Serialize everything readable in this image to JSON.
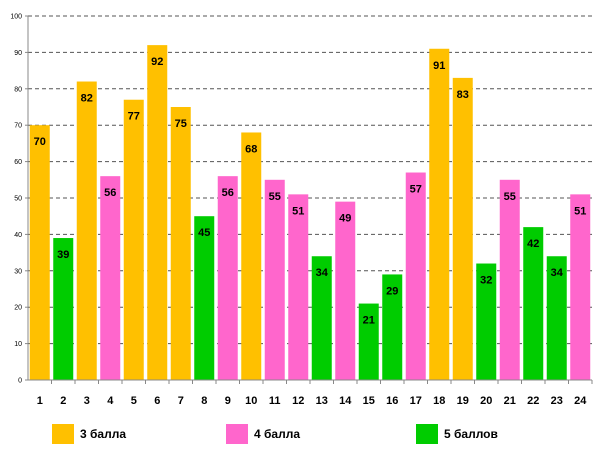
{
  "chart_data": {
    "type": "bar",
    "title": "",
    "xlabel": "",
    "ylabel": "",
    "ylim": [
      0,
      100
    ],
    "yticks": [
      0,
      10,
      20,
      30,
      40,
      50,
      60,
      70,
      80,
      90,
      100
    ],
    "grid": true,
    "categories": [
      "1",
      "2",
      "3",
      "4",
      "5",
      "6",
      "7",
      "8",
      "9",
      "10",
      "11",
      "12",
      "13",
      "14",
      "15",
      "16",
      "17",
      "18",
      "19",
      "20",
      "21",
      "22",
      "23",
      "24"
    ],
    "values": [
      70,
      39,
      82,
      56,
      77,
      92,
      75,
      45,
      56,
      68,
      55,
      51,
      34,
      49,
      21,
      29,
      57,
      91,
      83,
      32,
      55,
      42,
      34,
      51
    ],
    "groups": [
      "g3",
      "g5",
      "g3",
      "g4",
      "g3",
      "g3",
      "g3",
      "g5",
      "g4",
      "g3",
      "g4",
      "g4",
      "g5",
      "g4",
      "g5",
      "g5",
      "g4",
      "g3",
      "g3",
      "g5",
      "g4",
      "g5",
      "g5",
      "g4"
    ],
    "legend": [
      {
        "key": "g3",
        "label": "3 балла",
        "color": "#FFC000"
      },
      {
        "key": "g4",
        "label": "4 балла",
        "color": "#FF66CC"
      },
      {
        "key": "g5",
        "label": "5 баллов",
        "color": "#00CC00"
      }
    ],
    "legend_position": "bottom"
  }
}
